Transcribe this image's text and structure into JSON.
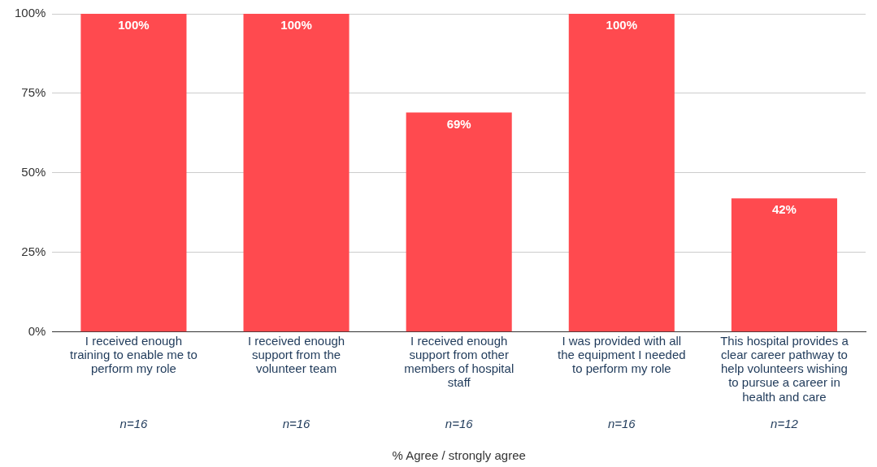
{
  "chart_data": {
    "type": "bar",
    "xlabel": "% Agree / strongly agree",
    "categories": [
      "I received enough training to enable me to perform my role",
      "I received enough support from the volunteer team",
      "I received enough support from other members of hospital staff",
      "I was provided with all the equipment I needed to perform my role",
      "This hospital provides a clear career pathway to help volunteers wishing to pursue a career in health and care"
    ],
    "values": [
      100,
      100,
      69,
      100,
      42
    ],
    "value_labels": [
      "100%",
      "100%",
      "69%",
      "100%",
      "42%"
    ],
    "color": "#ff4a4f",
    "ylim": [
      0,
      100
    ],
    "yticks": [
      {
        "value": 0,
        "label": "0%"
      },
      {
        "value": 25,
        "label": "25%"
      },
      {
        "value": 50,
        "label": "50%"
      },
      {
        "value": 75,
        "label": "75%"
      },
      {
        "value": 100,
        "label": "100%"
      }
    ],
    "grid": "y",
    "legend": false,
    "annotations": [
      "n=16",
      "n=16",
      "n=16",
      "n=16",
      "n=12"
    ]
  }
}
